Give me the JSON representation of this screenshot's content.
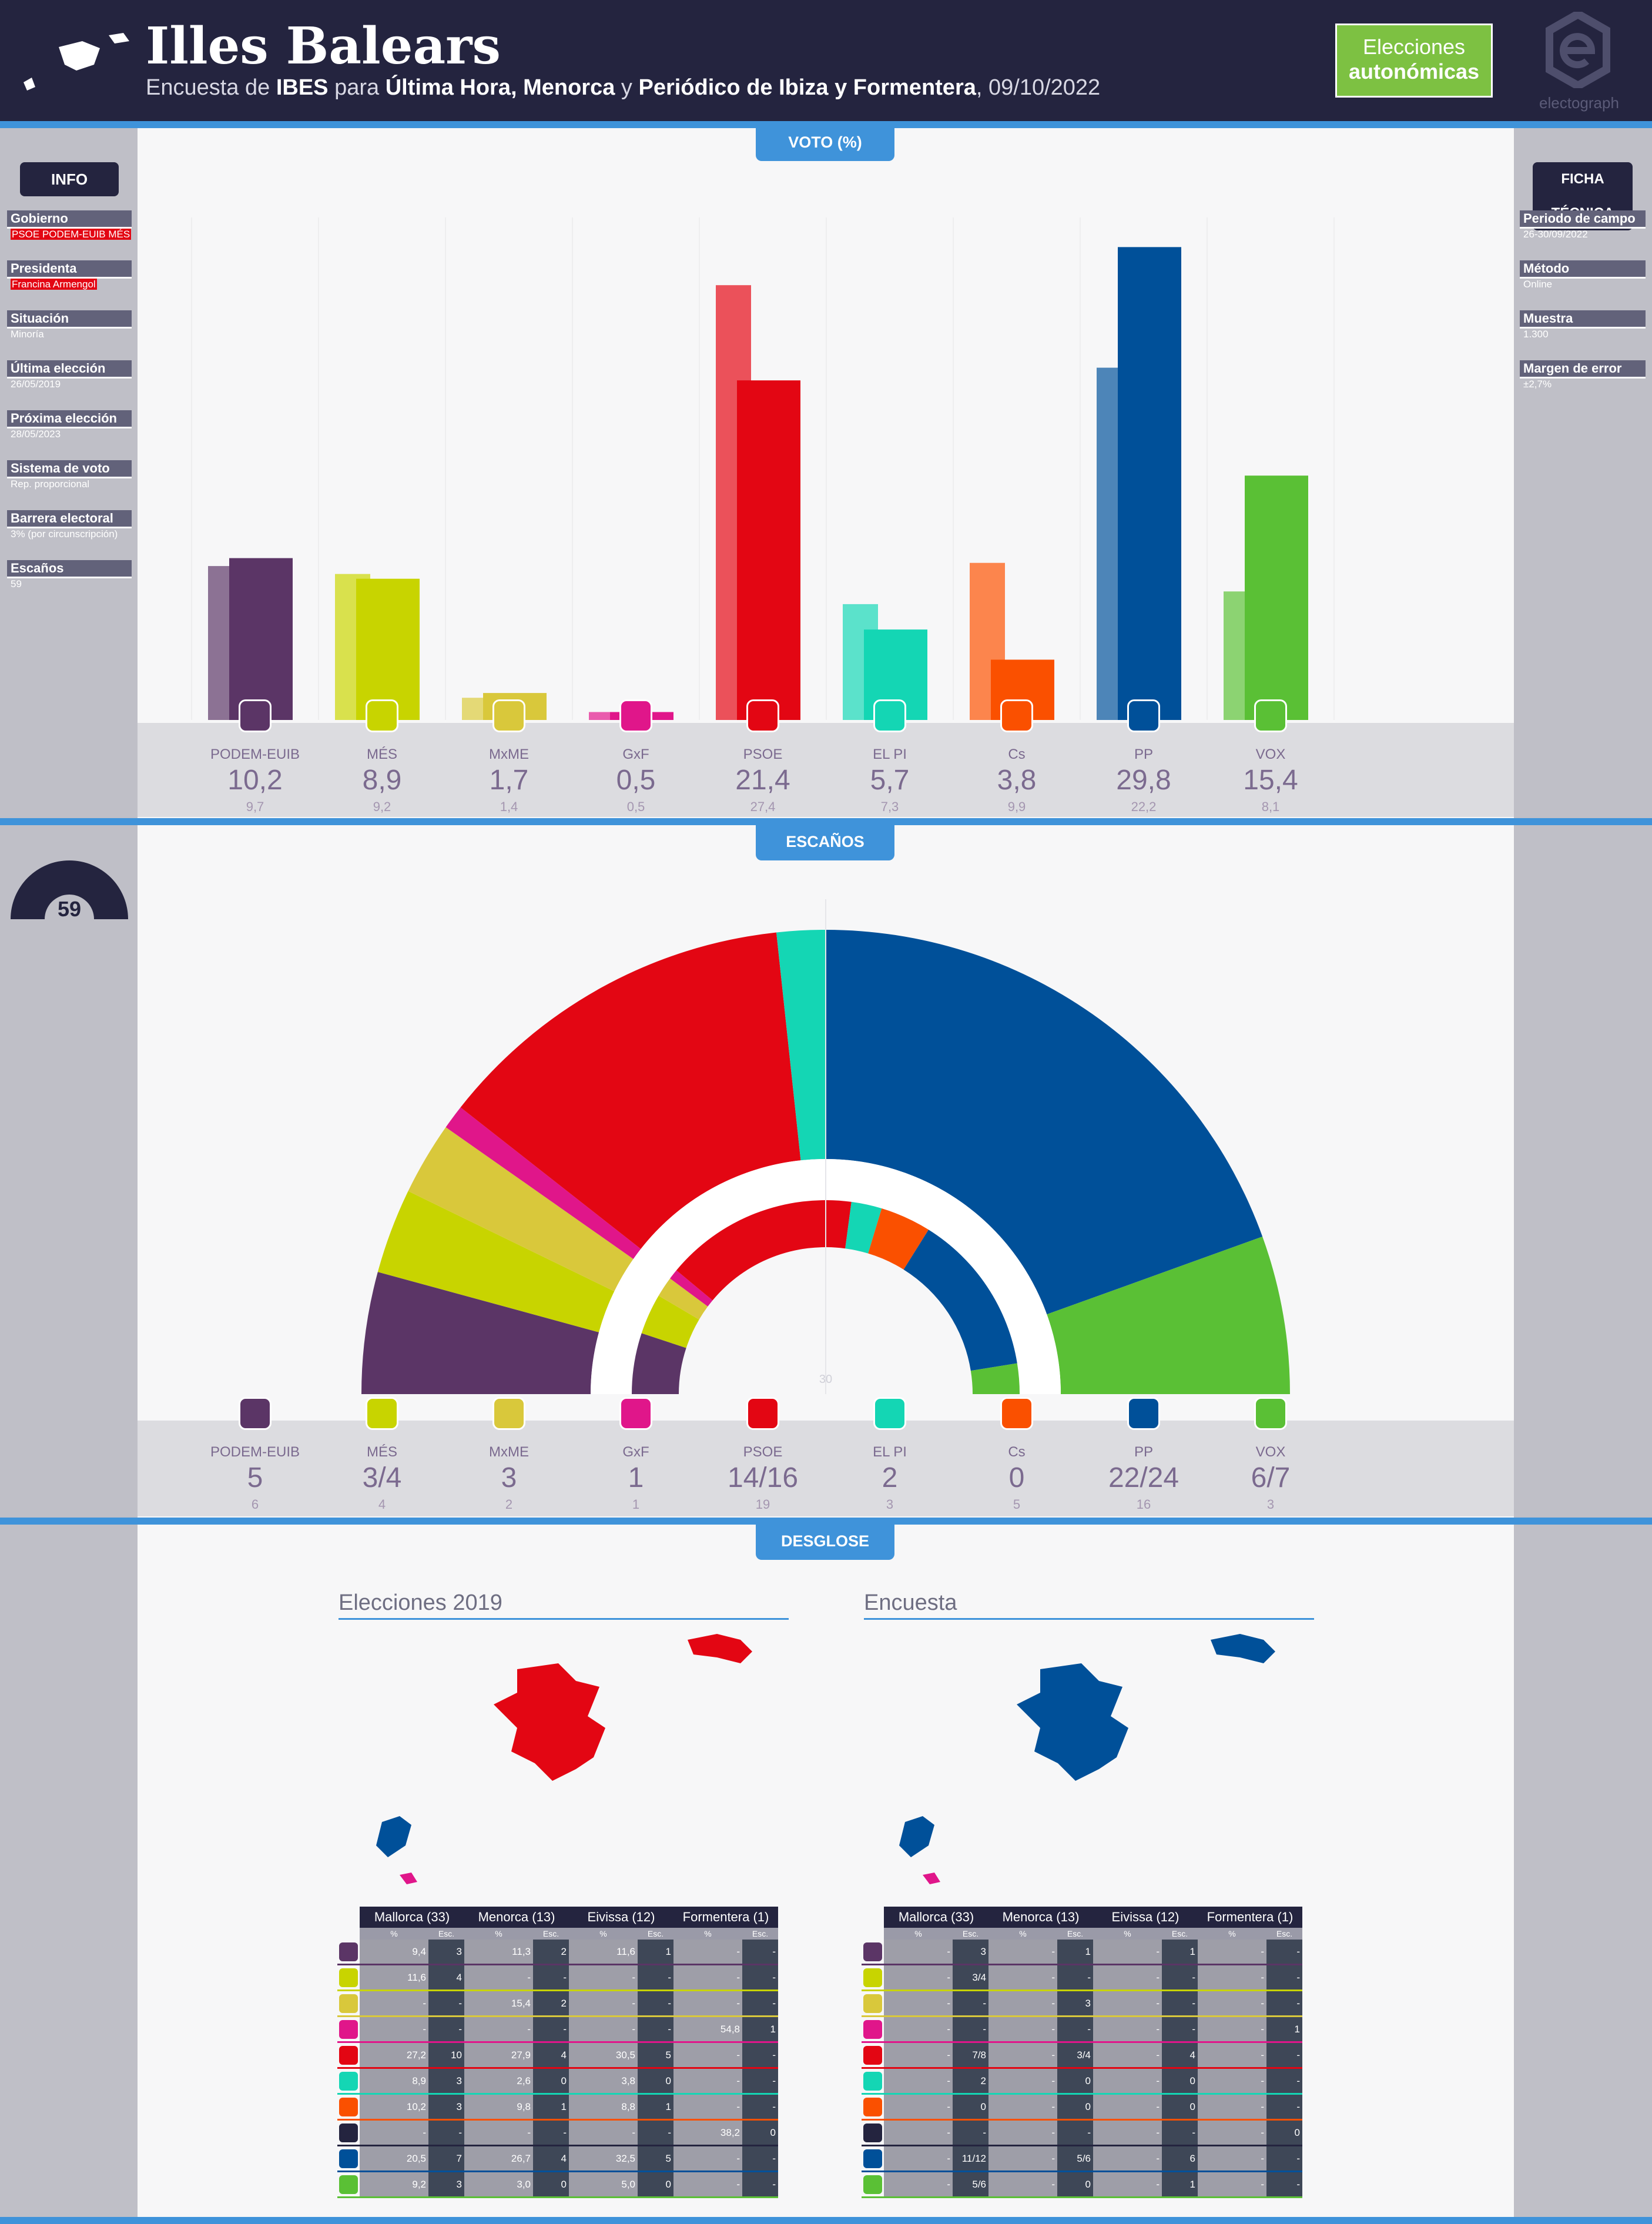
{
  "header": {
    "title": "Illes Balears",
    "subtitle_pre": "Encuesta de ",
    "pollster": "IBES",
    "subtitle_mid1": " para ",
    "media": "Última Hora, Menorca",
    "subtitle_mid2": " y ",
    "media2": "Periódico de Ibiza y Formentera",
    "date": ", 09/10/2022",
    "badge_line1": "Elecciones",
    "badge_line2": "autonómicas",
    "brand": "electograph"
  },
  "info": {
    "title": "INFO",
    "items": [
      {
        "label": "Gobierno",
        "value": "PSOE PODEM-EUIB MÉS"
      },
      {
        "label": "Presidenta",
        "value": "Francina Armengol"
      },
      {
        "label": "Situación",
        "value": "Minoría"
      },
      {
        "label": "Última elección",
        "value": "26/05/2019"
      },
      {
        "label": "Próxima elección",
        "value": "28/05/2023"
      },
      {
        "label": "Sistema de voto",
        "value": "Rep. proporcional"
      },
      {
        "label": "Barrera electoral",
        "value": "3% (por circunscripción)"
      },
      {
        "label": "Escaños",
        "value": "59"
      }
    ]
  },
  "ficha": {
    "title": "FICHA TÉCNICA",
    "items": [
      {
        "label": "Periodo de campo",
        "value": "26-30/09/2022"
      },
      {
        "label": "Método",
        "value": "Online"
      },
      {
        "label": "Muestra",
        "value": "1.300"
      },
      {
        "label": "Margen de error",
        "value": "±2,7%"
      }
    ]
  },
  "sections": {
    "voto": "VOTO (%)",
    "escanos": "ESCAÑOS",
    "desglose": "DESGLOSE"
  },
  "colors": {
    "PODEM-EUIB": "#5b3566",
    "MÉS": "#c8d400",
    "MxME": "#d9c83b",
    "GxF": "#e0168a",
    "PSOE": "#e30613",
    "EL PI": "#14d6b4",
    "Cs": "#fa5000",
    "PP": "#005099",
    "VOX": "#5ac035"
  },
  "chart_data": [
    {
      "type": "bar",
      "categories": [
        "PODEM-EUIB",
        "MÉS",
        "MxME",
        "GxF",
        "PSOE",
        "EL PI",
        "Cs",
        "PP",
        "VOX"
      ],
      "series": [
        {
          "values": [
            10.2,
            8.9,
            1.7,
            0.5,
            21.4,
            5.7,
            3.8,
            29.8,
            15.4
          ]
        },
        {
          "values": [
            9.7,
            9.2,
            1.4,
            0.5,
            27.4,
            7.3,
            9.9,
            22.2,
            8.1
          ]
        }
      ],
      "labels": [
        "10,2",
        "8,9",
        "1,7",
        "0,5",
        "21,4",
        "5,7",
        "3,8",
        "29,8",
        "15,4"
      ],
      "prev_labels": [
        "9,7",
        "9,2",
        "1,4",
        "0,5",
        "27,4",
        "7,3",
        "9,9",
        "22,2",
        "8,1"
      ],
      "ylim": [
        0,
        35
      ]
    },
    {
      "type": "pie",
      "total": "59",
      "majority": "30",
      "categories": [
        "PODEM-EUIB",
        "MÉS",
        "MxME",
        "GxF",
        "PSOE",
        "EL PI",
        "Cs",
        "PP",
        "VOX"
      ],
      "series": [
        {
          "values": [
            5,
            3.5,
            3,
            1,
            15,
            2,
            0,
            23,
            6.5
          ]
        },
        {
          "values": [
            6,
            4,
            2,
            1,
            19,
            3,
            5,
            16,
            3
          ]
        }
      ],
      "labels": [
        "5",
        "3/4",
        "3",
        "1",
        "14/16",
        "2",
        "0",
        "22/24",
        "6/7"
      ],
      "prev_labels": [
        "6",
        "4",
        "2",
        "1",
        "19",
        "3",
        "5",
        "16",
        "3"
      ]
    }
  ],
  "desglose": {
    "left_title": "Elecciones 2019",
    "right_title": "Encuesta",
    "regions": [
      "Mallorca (33)",
      "Menorca (13)",
      "Eivissa (12)",
      "Formentera (1)"
    ],
    "sub_pct": "%",
    "sub_esc": "Esc.",
    "row_colors": [
      "#5b3566",
      "#c8d400",
      "#d9c83b",
      "#e0168a",
      "#e30613",
      "#14d6b4",
      "#fa5000",
      "#24243f",
      "#005099",
      "#5ac035"
    ],
    "row_icons": [
      "podem-icon",
      "mes-icon",
      "mxme-icon",
      "gxf-icon",
      "psoe-icon",
      "elpi-icon",
      "cs-icon",
      "sa-icon",
      "pp-icon",
      "vox-icon"
    ],
    "left_rows": [
      [
        "9,4",
        "3",
        "11,3",
        "2",
        "11,6",
        "1",
        "-",
        "-"
      ],
      [
        "11,6",
        "4",
        "-",
        "-",
        "-",
        "-",
        "-",
        "-"
      ],
      [
        "-",
        "-",
        "15,4",
        "2",
        "-",
        "-",
        "-",
        "-"
      ],
      [
        "-",
        "-",
        "-",
        "-",
        "-",
        "-",
        "54,8",
        "1"
      ],
      [
        "27,2",
        "10",
        "27,9",
        "4",
        "30,5",
        "5",
        "-",
        "-"
      ],
      [
        "8,9",
        "3",
        "2,6",
        "0",
        "3,8",
        "0",
        "-",
        "-"
      ],
      [
        "10,2",
        "3",
        "9,8",
        "1",
        "8,8",
        "1",
        "-",
        "-"
      ],
      [
        "-",
        "-",
        "-",
        "-",
        "-",
        "-",
        "38,2",
        "0"
      ],
      [
        "20,5",
        "7",
        "26,7",
        "4",
        "32,5",
        "5",
        "-",
        "-"
      ],
      [
        "9,2",
        "3",
        "3,0",
        "0",
        "5,0",
        "0",
        "-",
        "-"
      ]
    ],
    "right_rows": [
      [
        "-",
        "3",
        "-",
        "1",
        "-",
        "1",
        "-",
        "-"
      ],
      [
        "-",
        "3/4",
        "-",
        "-",
        "-",
        "-",
        "-",
        "-"
      ],
      [
        "-",
        "-",
        "-",
        "3",
        "-",
        "-",
        "-",
        "-"
      ],
      [
        "-",
        "-",
        "-",
        "-",
        "-",
        "-",
        "-",
        "1"
      ],
      [
        "-",
        "7/8",
        "-",
        "3/4",
        "-",
        "4",
        "-",
        "-"
      ],
      [
        "-",
        "2",
        "-",
        "0",
        "-",
        "0",
        "-",
        "-"
      ],
      [
        "-",
        "0",
        "-",
        "0",
        "-",
        "0",
        "-",
        "-"
      ],
      [
        "-",
        "-",
        "-",
        "-",
        "-",
        "-",
        "-",
        "0"
      ],
      [
        "-",
        "11/12",
        "-",
        "5/6",
        "-",
        "6",
        "-",
        "-"
      ],
      [
        "-",
        "5/6",
        "-",
        "0",
        "-",
        "1",
        "-",
        "-"
      ]
    ]
  }
}
